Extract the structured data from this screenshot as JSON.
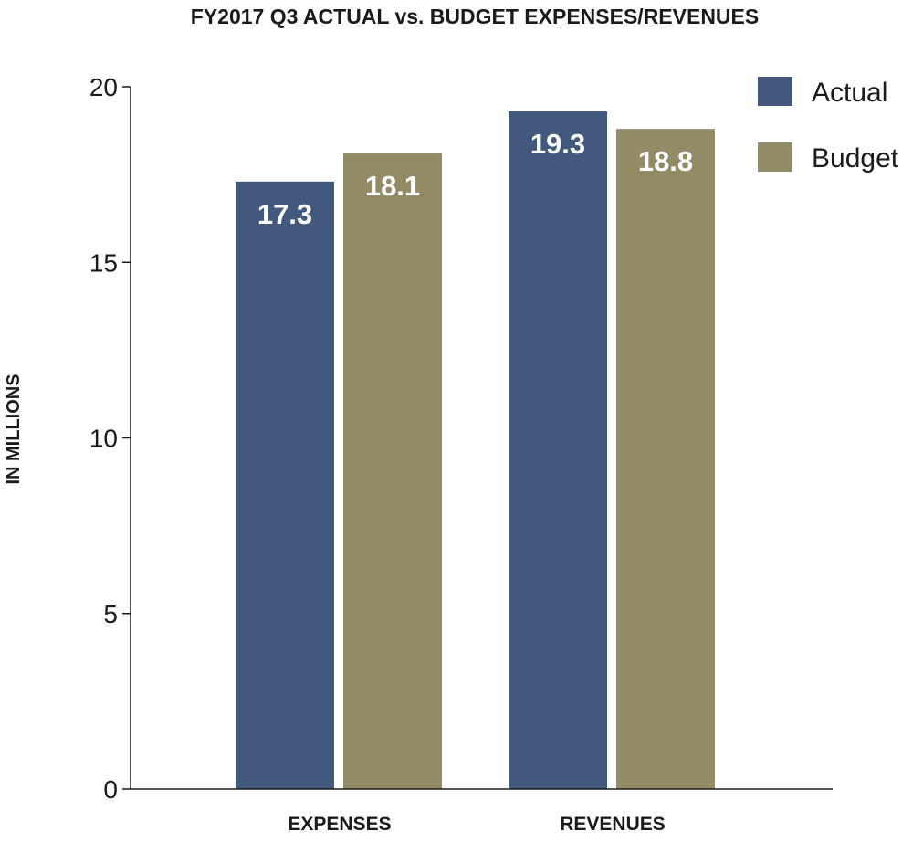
{
  "chart_data": {
    "type": "bar",
    "title": "FY2017 Q3 ACTUAL vs. BUDGET EXPENSES/REVENUES",
    "xlabel": "",
    "ylabel": "IN MILLIONS",
    "ylim": [
      0,
      20
    ],
    "yticks": [
      0,
      5,
      10,
      15,
      20
    ],
    "categories": [
      "EXPENSES",
      "REVENUES"
    ],
    "series": [
      {
        "name": "Actual",
        "color": "#42597d",
        "values": [
          17.3,
          19.3
        ],
        "labels": [
          "17.3",
          "19.3"
        ]
      },
      {
        "name": "Budget",
        "color": "#928b65",
        "values": [
          18.1,
          18.8
        ],
        "labels": [
          "18.1",
          "18.8"
        ]
      }
    ],
    "grid": false,
    "legend": "top-right"
  }
}
